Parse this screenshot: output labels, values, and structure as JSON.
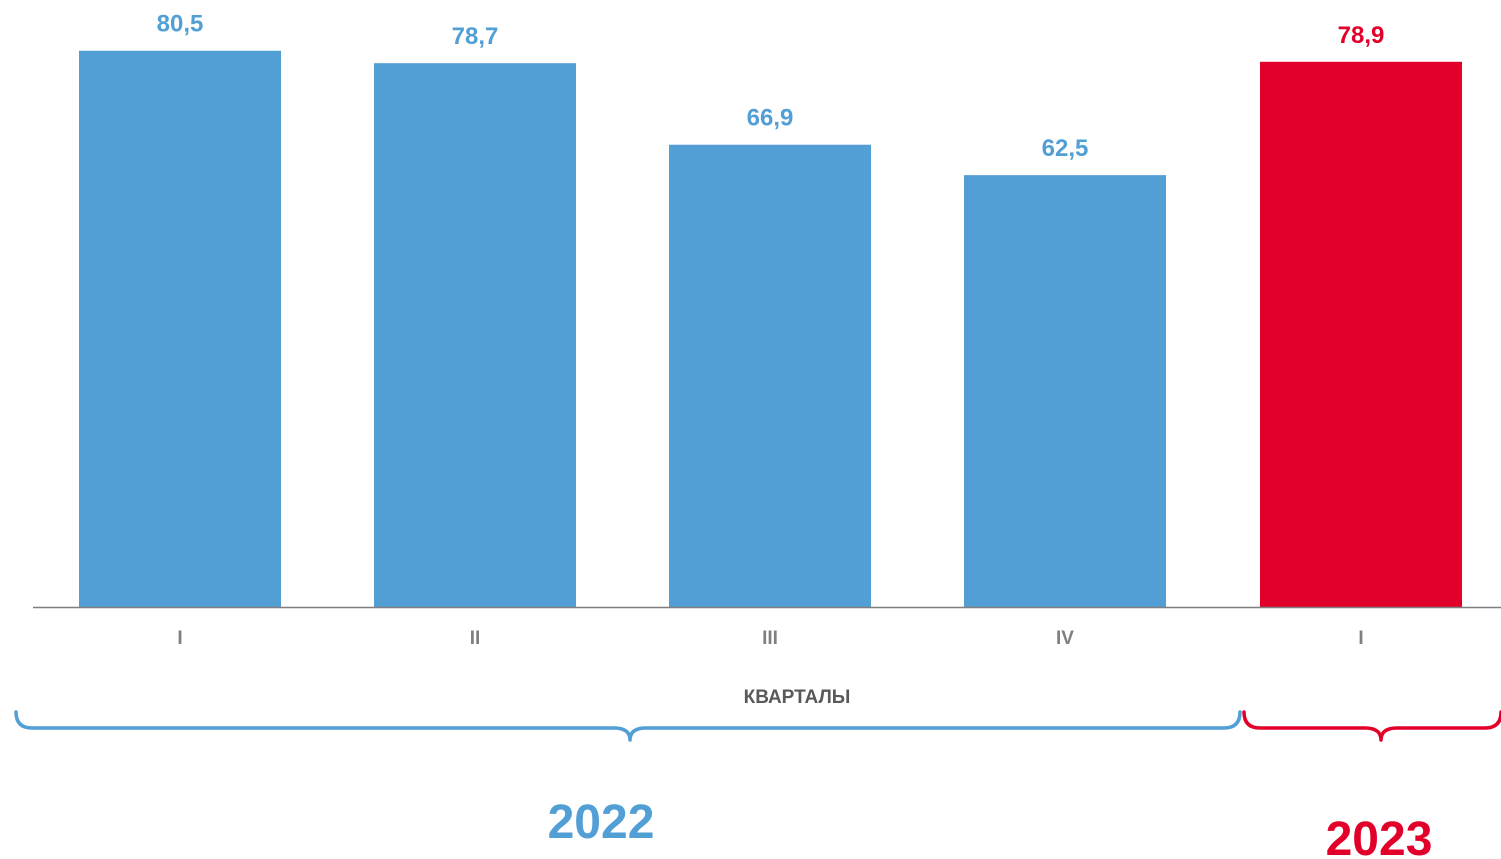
{
  "chart_data": {
    "type": "bar",
    "categories": [
      "I",
      "II",
      "III",
      "IV",
      "I"
    ],
    "values": [
      80.5,
      78.7,
      66.9,
      62.5,
      78.9
    ],
    "value_labels": [
      "80,5",
      "78,7",
      "66,9",
      "62,5",
      "78,9"
    ],
    "ylim": [
      0,
      85
    ],
    "grid": false,
    "xlabel": "КВАРТАЛЫ",
    "groups": [
      {
        "label": "2022",
        "start": 0,
        "end": 3,
        "color": "#529fd6"
      },
      {
        "label": "2023",
        "start": 4,
        "end": 4,
        "color": "#e2002a"
      }
    ],
    "bar_colors": [
      "#529fd6",
      "#529fd6",
      "#529fd6",
      "#529fd6",
      "#e2002a"
    ],
    "axis_color": "#7f7f7f"
  }
}
